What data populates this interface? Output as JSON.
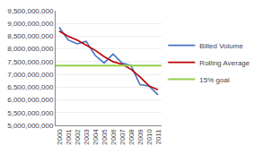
{
  "chart_data": {
    "type": "line",
    "x": [
      2000,
      2001,
      2002,
      2003,
      2004,
      2005,
      2006,
      2007,
      2008,
      2009,
      2010,
      2011
    ],
    "series": [
      {
        "name": "Billed Volume",
        "color": "#4472C4",
        "type": "line",
        "values": [
          8850000000,
          8350000000,
          8200000000,
          8300000000,
          7750000000,
          7450000000,
          7800000000,
          7450000000,
          7350000000,
          6600000000,
          6550000000,
          6200000000
        ]
      },
      {
        "name": "Rolling Average",
        "color": "#C00000",
        "type": "line",
        "values": [
          8700000000,
          8500000000,
          8350000000,
          8150000000,
          7950000000,
          7700000000,
          7500000000,
          7400000000,
          7200000000,
          6900000000,
          6550000000,
          6400000000
        ]
      },
      {
        "name": "15% goal",
        "color": "#92D050",
        "type": "hline",
        "value": 7350000000
      }
    ],
    "xlim": [
      1999.6,
      2011.4
    ],
    "xticks": [
      2000,
      2001,
      2002,
      2003,
      2004,
      2005,
      2006,
      2007,
      2008,
      2009,
      2010,
      2011
    ],
    "ylim": [
      5000000000,
      9500000000
    ],
    "yticks": [
      {
        "value": 5000000000,
        "label": "5,000,000,000"
      },
      {
        "value": 5500000000,
        "label": "5,500,000,000"
      },
      {
        "value": 6000000000,
        "label": "6,000,000,000"
      },
      {
        "value": 6500000000,
        "label": "6,500,000,000"
      },
      {
        "value": 7000000000,
        "label": "7,000,000,000"
      },
      {
        "value": 7500000000,
        "label": "7,500,000,000"
      },
      {
        "value": 8000000000,
        "label": "8,000,000,000"
      },
      {
        "value": 8500000000,
        "label": "8,500,000,000"
      },
      {
        "value": 9000000000,
        "label": "9,000,000,000"
      },
      {
        "value": 9500000000,
        "label": "9,500,000,000"
      }
    ],
    "grid": true,
    "legend": "right"
  }
}
